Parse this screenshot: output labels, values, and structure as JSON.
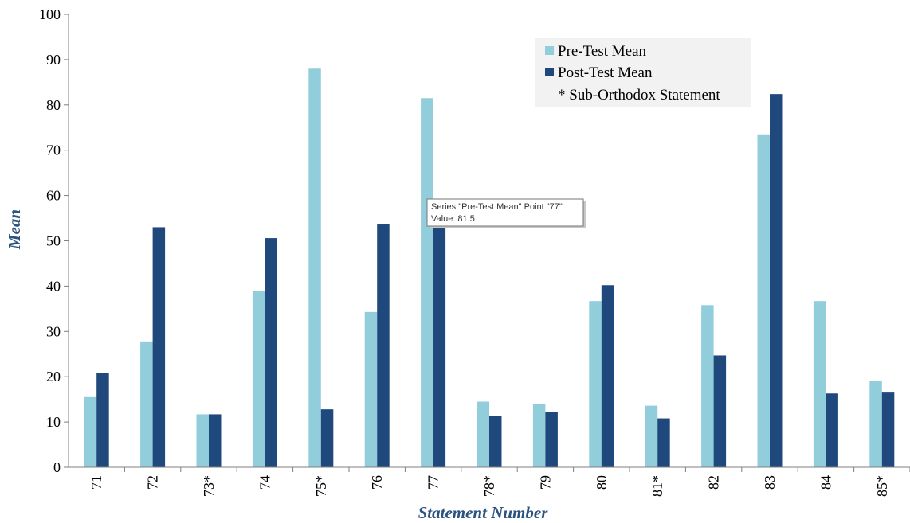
{
  "chart_data": {
    "type": "bar",
    "categories": [
      "71",
      "72",
      "73*",
      "74",
      "75*",
      "76",
      "77",
      "78*",
      "79",
      "80",
      "81*",
      "82",
      "83",
      "84",
      "85*"
    ],
    "series": [
      {
        "name": "Pre-Test Mean",
        "color": "#92cddc",
        "values": [
          15.5,
          27.8,
          11.7,
          38.9,
          88.0,
          34.3,
          81.5,
          14.5,
          14.0,
          36.7,
          13.6,
          35.8,
          73.5,
          36.7,
          19.0
        ]
      },
      {
        "name": "Post-Test Mean",
        "color": "#1f497d",
        "values": [
          20.8,
          53.0,
          11.7,
          50.6,
          12.8,
          53.6,
          53.5,
          11.3,
          12.3,
          40.2,
          10.8,
          24.7,
          82.4,
          16.3,
          16.5
        ]
      }
    ],
    "legend_note": "* Sub-Orthodox Statement",
    "xlabel": "Statement Number",
    "ylabel": "Mean",
    "ylim": [
      0,
      100
    ],
    "yticks": [
      "0",
      "10",
      "20",
      "30",
      "40",
      "50",
      "60",
      "70",
      "80",
      "90",
      "100"
    ],
    "grid": false,
    "legend_position": "top-right",
    "tooltip": {
      "line1": "Series \"Pre-Test Mean\" Point \"77\"",
      "line2": "Value: 81.5"
    }
  }
}
